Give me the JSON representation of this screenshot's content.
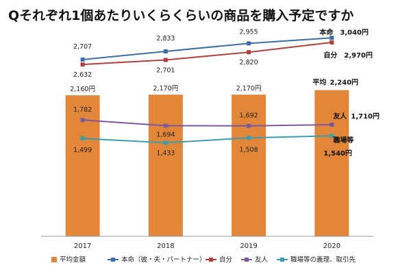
{
  "title": "Qそれぞれ1個あたりいくらくらいの商品を購入予定ですか",
  "chart_data": {
    "type": "bar",
    "categories": [
      "2017",
      "2018",
      "2019",
      "2020"
    ],
    "ylim": [
      0,
      3200
    ],
    "grid": false,
    "legend_position": "bottom",
    "bars": {
      "name": "平均金額",
      "color": "#E2873A",
      "values": [
        2160,
        2170,
        2170,
        2240
      ],
      "labels": [
        "2,160円",
        "2,170円",
        "2,170円",
        "2,240円"
      ]
    },
    "lines": [
      {
        "name": "本命（彼・夫・パートナー）",
        "color": "#3E6CA8",
        "values": [
          2707,
          2833,
          2955,
          3040
        ],
        "labels": [
          "2,707",
          "2,833",
          "2,955",
          "3,040円"
        ]
      },
      {
        "name": "自分",
        "color": "#B43C3C",
        "values": [
          2632,
          2701,
          2820,
          2970
        ],
        "labels": [
          "2,632",
          "2,701",
          "2,820",
          "2,970円"
        ]
      },
      {
        "name": "友人",
        "color": "#7A58A0",
        "values": [
          1782,
          1694,
          1692,
          1710
        ],
        "labels": [
          "1,782",
          "1,694",
          "1,692",
          "1,710円"
        ]
      },
      {
        "name": "職場等の義理、取引先",
        "color": "#3A9DB0",
        "values": [
          1499,
          1433,
          1508,
          1540
        ],
        "labels": [
          "1,499",
          "1,433",
          "1,508",
          "1,540円"
        ]
      }
    ],
    "annotations": {
      "average": "平均",
      "honmei": "本命",
      "jibun": "自分",
      "yujin": "友人",
      "shokuba": "職場等"
    }
  }
}
